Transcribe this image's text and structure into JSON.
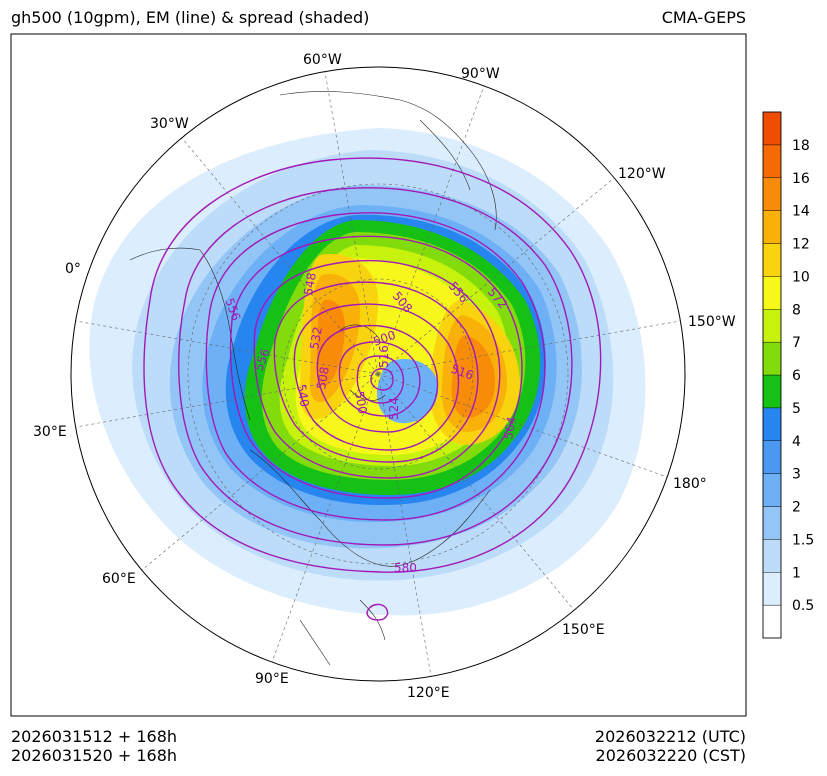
{
  "title_left": "gh500 (10gpm), EM (line) & spread (shaded)",
  "title_right": "CMA-GEPS",
  "footer": {
    "init_utc": "2026031512 + 168h",
    "init_cst": "2026031520 + 168h",
    "valid_utc": "2026032212 (UTC)",
    "valid_cst": "2026032220 (CST)"
  },
  "longitude_labels": [
    {
      "text": "60°W",
      "lon": -60
    },
    {
      "text": "90°W",
      "lon": -90
    },
    {
      "text": "30°W",
      "lon": -30
    },
    {
      "text": "120°W",
      "lon": -120
    },
    {
      "text": "0°",
      "lon": 0
    },
    {
      "text": "150°W",
      "lon": -150
    },
    {
      "text": "30°E",
      "lon": 30
    },
    {
      "text": "180°",
      "lon": 180
    },
    {
      "text": "60°E",
      "lon": 60
    },
    {
      "text": "150°E",
      "lon": 150
    },
    {
      "text": "90°E",
      "lon": 90
    },
    {
      "text": "120°E",
      "lon": 120
    }
  ],
  "contour_labels": [
    "556",
    "548",
    "532",
    "508",
    "500",
    "516",
    "524",
    "564",
    "572",
    "540",
    "580"
  ],
  "colorbar": {
    "levels": [
      "0.5",
      "1",
      "1.5",
      "2",
      "3",
      "4",
      "5",
      "6",
      "7",
      "8",
      "10",
      "12",
      "14",
      "16",
      "18"
    ],
    "colors": [
      "#ffffff",
      "#dcedfd",
      "#bcdcfa",
      "#93c6f7",
      "#6eb0f5",
      "#4b98f2",
      "#2785ef",
      "#14c114",
      "#82dc0c",
      "#c6f20c",
      "#f7f71b",
      "#f9d40e",
      "#f9b10a",
      "#f88c08",
      "#f66a06",
      "#f04d02"
    ]
  },
  "colors": {
    "contour_line": "#a318b8",
    "contour_label": "#a318b8",
    "map_border": "#000000"
  }
}
